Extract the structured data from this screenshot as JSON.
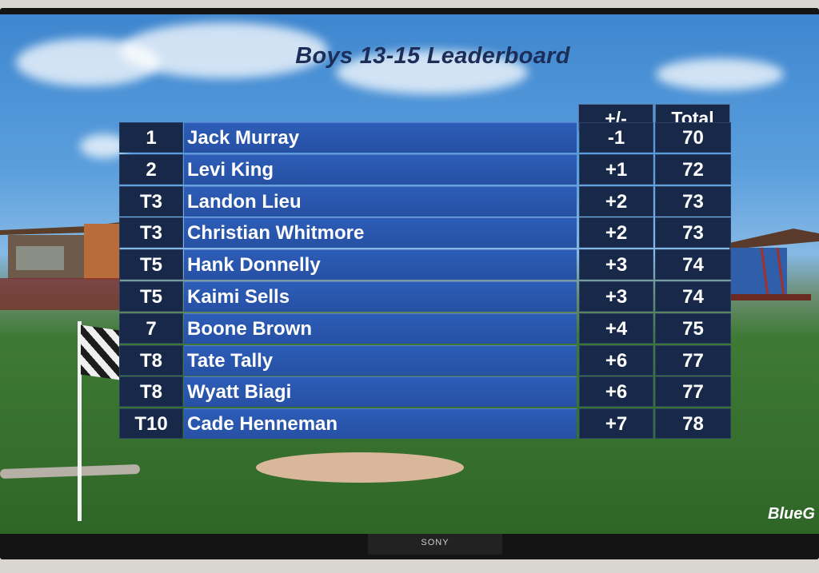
{
  "title": "Boys 13-15 Leaderboard",
  "columns": {
    "plus_minus": "+/-",
    "total": "Total"
  },
  "rows": [
    {
      "pos": "1",
      "name": "Jack Murray",
      "pm": "-1",
      "total": "70"
    },
    {
      "pos": "2",
      "name": "Levi King",
      "pm": "+1",
      "total": "72"
    },
    {
      "pos": "T3",
      "name": "Landon Lieu",
      "pm": "+2",
      "total": "73"
    },
    {
      "pos": "T3",
      "name": "Christian Whitmore",
      "pm": "+2",
      "total": "73"
    },
    {
      "pos": "T5",
      "name": "Hank Donnelly",
      "pm": "+3",
      "total": "74"
    },
    {
      "pos": "T5",
      "name": "Kaimi Sells",
      "pm": "+3",
      "total": "74"
    },
    {
      "pos": "7",
      "name": "Boone Brown",
      "pm": "+4",
      "total": "75"
    },
    {
      "pos": "T8",
      "name": "Tate Tally",
      "pm": "+6",
      "total": "77"
    },
    {
      "pos": "T8",
      "name": "Wyatt Biagi",
      "pm": "+6",
      "total": "77"
    },
    {
      "pos": "T10",
      "name": "Cade Henneman",
      "pm": "+7",
      "total": "78"
    }
  ],
  "logo_text": "BlueG",
  "tv_brand": "SONY"
}
